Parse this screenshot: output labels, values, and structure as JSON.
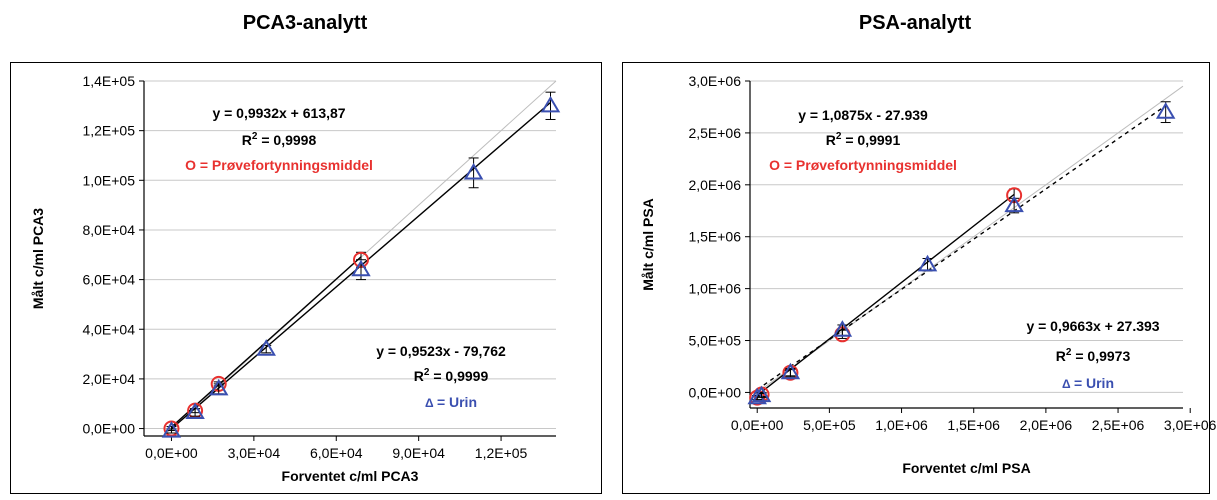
{
  "chart_data": [
    {
      "type": "scatter",
      "title": "PCA3-analytt",
      "xlabel": "Forventet c/ml PCA3",
      "ylabel": "Målt c/ml PCA3",
      "xlim": [
        -10000,
        140000
      ],
      "ylim": [
        -3000,
        140000
      ],
      "xticks": [
        "0,0E+00",
        "3,0E+04",
        "6,0E+04",
        "9,0E+04",
        "1,2E+05"
      ],
      "xtick_values": [
        0,
        30000,
        60000,
        90000,
        120000
      ],
      "yticks": [
        "0,0E+00",
        "2,0E+04",
        "4,0E+04",
        "6,0E+04",
        "8,0E+04",
        "1,0E+05",
        "1,2E+05",
        "1,4E+05"
      ],
      "ytick_values": [
        0,
        20000,
        40000,
        60000,
        80000,
        100000,
        120000,
        140000
      ],
      "grid": "horizontal",
      "series": [
        {
          "name": "O = Prøvefortynningsmiddel",
          "marker": "circle",
          "color": "#e8312f",
          "x": [
            0,
            8600,
            17200,
            69000
          ],
          "y": [
            0,
            7200,
            18000,
            68000
          ],
          "err": [
            800,
            800,
            800,
            3000
          ],
          "fit": {
            "equation": "y = 0,9932x + 613,87",
            "r2": "0,9998",
            "slope": 0.9932,
            "intercept": 613.87
          }
        },
        {
          "name": "= Urin",
          "legend_symbol": "Δ",
          "marker": "triangle",
          "color": "#3a4fb0",
          "x": [
            0,
            8600,
            17200,
            34500,
            69000,
            110000,
            138000
          ],
          "y": [
            -1000,
            6500,
            16000,
            32000,
            64000,
            103000,
            130000
          ],
          "err": [
            800,
            1500,
            2000,
            1500,
            4000,
            6000,
            5500
          ],
          "fit": {
            "equation": "y = 0,9523x - 79,762",
            "r2": "0,9999",
            "slope": 0.9523,
            "intercept": -79.762
          }
        }
      ],
      "annotations": {
        "eq1": "y = 0,9932x + 613,87",
        "r2_1": "0,9998",
        "legend1": "O = Prøvefortynningsmiddel",
        "eq2": "y = 0,9523x - 79,762",
        "r2_2": "0,9999",
        "legend2_symbol": "Δ",
        "legend2": "= Urin",
        "r_label": "R",
        "sup": "2",
        "eq_sign": " = "
      }
    },
    {
      "type": "scatter",
      "title": "PSA-analytt",
      "xlabel": "Forventet c/ml PSA",
      "ylabel": "Målt c/ml PSA",
      "xlim": [
        -50000,
        2950000
      ],
      "ylim": [
        -150000,
        3000000
      ],
      "xticks": [
        "0,0E+00",
        "5,0E+05",
        "1,0E+06",
        "1,5E+06",
        "2,0E+06",
        "2,5E+06",
        "3,0E+06"
      ],
      "xtick_values": [
        0,
        500000,
        1000000,
        1500000,
        2000000,
        2500000,
        3000000
      ],
      "yticks": [
        "0,0E+00",
        "5,0E+05",
        "1,0E+06",
        "1,5E+06",
        "2,0E+06",
        "2,5E+06",
        "3,0E+06"
      ],
      "ytick_values": [
        0,
        500000,
        1000000,
        1500000,
        2000000,
        2500000,
        3000000
      ],
      "grid": "horizontal",
      "series": [
        {
          "name": "O = Prøvefortynningsmiddel",
          "marker": "circle",
          "color": "#e8312f",
          "x": [
            0,
            30000,
            230000,
            590000,
            1780000
          ],
          "y": [
            -50000,
            -20000,
            190000,
            560000,
            1900000
          ],
          "err": [
            20000,
            20000,
            30000,
            40000,
            60000
          ],
          "fit": {
            "equation": "y = 1,0875x - 27.939",
            "r2": "0,9991",
            "slope": 1.0875,
            "intercept": -27939,
            "style": "solid"
          }
        },
        {
          "name": "= Urin",
          "legend_symbol": "Δ",
          "marker": "triangle",
          "color": "#3a4fb0",
          "x": [
            0,
            30000,
            230000,
            590000,
            1180000,
            1780000,
            2830000
          ],
          "y": [
            -50000,
            -30000,
            190000,
            600000,
            1230000,
            1800000,
            2700000
          ],
          "err": [
            20000,
            20000,
            40000,
            50000,
            60000,
            70000,
            100000
          ],
          "fit": {
            "equation": "y = 0,9663x + 27.393",
            "r2": "0,9973",
            "slope": 0.9663,
            "intercept": 27393,
            "style": "dashed"
          }
        }
      ],
      "annotations": {
        "eq1": "y = 1,0875x - 27.939",
        "r2_1": "0,9991",
        "legend1": "O = Prøvefortynningsmiddel",
        "eq2": "y = 0,9663x + 27.393",
        "r2_2": "0,9973",
        "legend2_symbol": "Δ",
        "legend2": "= Urin",
        "r_label": "R",
        "sup": "2",
        "eq_sign": " = "
      }
    }
  ],
  "colors": {
    "red": "#e8312f",
    "blue": "#3a4fb0",
    "grid": "#c8c8c8",
    "identity": "#bdbdbd"
  }
}
